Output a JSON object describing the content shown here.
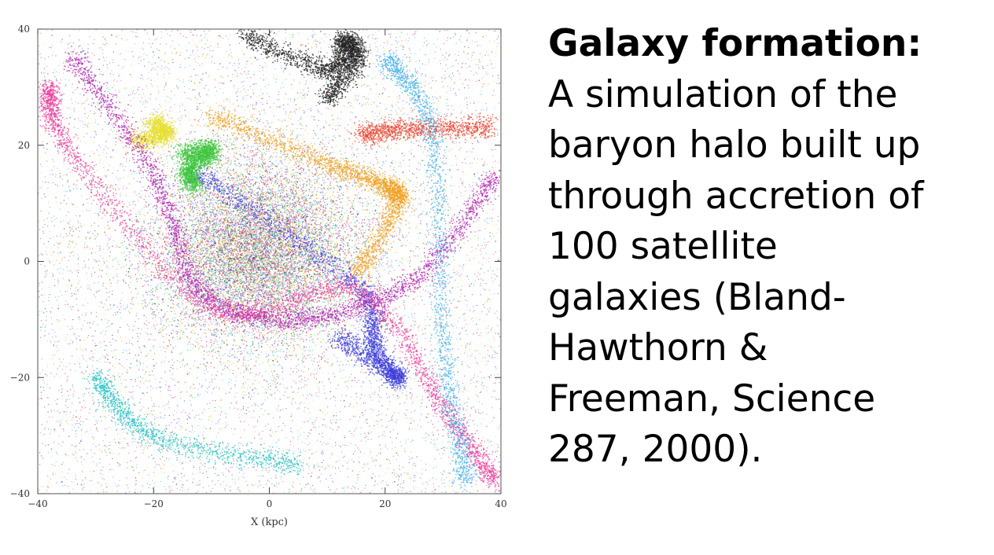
{
  "slide": {
    "caption_title": "Galaxy formation:",
    "caption_lines": [
      "A simulation of the",
      "baryon halo built up",
      "through accretion of",
      "100 satellite",
      "galaxies (Bland-",
      "Hawthorn &",
      "Freeman, Science",
      "287, 2000)."
    ]
  },
  "chart_data": {
    "type": "scatter",
    "title": "",
    "xlabel": "X (kpc)",
    "ylabel": "",
    "xlim": [
      -40,
      40
    ],
    "ylim": [
      -40,
      40
    ],
    "xticks": [
      -40,
      -20,
      0,
      20,
      40
    ],
    "yticks": [
      -40,
      -20,
      0,
      20,
      40
    ],
    "xtick_labels": [
      "−40",
      "−20",
      "0",
      "20",
      "40"
    ],
    "ytick_labels": [
      "−40",
      "−20",
      "0",
      "20",
      "40"
    ],
    "grid": false,
    "legend": "none",
    "series_colors": [
      "#e8432f",
      "#f0a020",
      "#e6e030",
      "#3cc43c",
      "#40b0e8",
      "#3a3ad8",
      "#b020b0",
      "#e83a9a",
      "#202020",
      "#20c0c0"
    ],
    "series": [
      {
        "color": "#202020",
        "values": [
          [
            -4,
            39
          ],
          [
            10,
            33
          ],
          [
            13,
            38
          ],
          [
            15,
            35
          ],
          [
            10,
            28
          ]
        ]
      },
      {
        "color": "#3cc43c",
        "values": [
          [
            -15,
            18.5
          ],
          [
            -10,
            19
          ],
          [
            -14,
            16
          ],
          [
            -13,
            13
          ]
        ]
      },
      {
        "color": "#e6e030",
        "values": [
          [
            -20,
            24
          ],
          [
            -18,
            22
          ],
          [
            -23,
            21
          ]
        ]
      },
      {
        "color": "#e8432f",
        "values": [
          [
            16,
            22
          ],
          [
            25,
            23
          ],
          [
            38,
            23
          ]
        ]
      },
      {
        "color": "#f0a020",
        "values": [
          [
            -10,
            25
          ],
          [
            10,
            17
          ],
          [
            20,
            13
          ],
          [
            22,
            10
          ],
          [
            15,
            -2
          ]
        ]
      },
      {
        "color": "#3a3ad8",
        "values": [
          [
            -12,
            15
          ],
          [
            15,
            -4
          ],
          [
            18,
            -15
          ],
          [
            22,
            -20
          ],
          [
            12,
            -13
          ]
        ]
      },
      {
        "color": "#b020b0",
        "values": [
          [
            -34,
            35
          ],
          [
            -20,
            15
          ],
          [
            -12,
            -5
          ],
          [
            5,
            -10
          ],
          [
            25,
            -3
          ],
          [
            39,
            15
          ]
        ]
      },
      {
        "color": "#e83a9a",
        "values": [
          [
            -38,
            30
          ],
          [
            -35,
            20
          ],
          [
            -10,
            -8
          ],
          [
            15,
            -5
          ],
          [
            30,
            -25
          ],
          [
            39,
            -38
          ]
        ]
      },
      {
        "color": "#40b0e8",
        "values": [
          [
            20,
            35
          ],
          [
            28,
            22
          ],
          [
            30,
            -15
          ],
          [
            34,
            -38
          ]
        ]
      },
      {
        "color": "#20c0c0",
        "values": [
          [
            -30,
            -20
          ],
          [
            -20,
            -30
          ],
          [
            5,
            -35
          ]
        ]
      }
    ]
  }
}
